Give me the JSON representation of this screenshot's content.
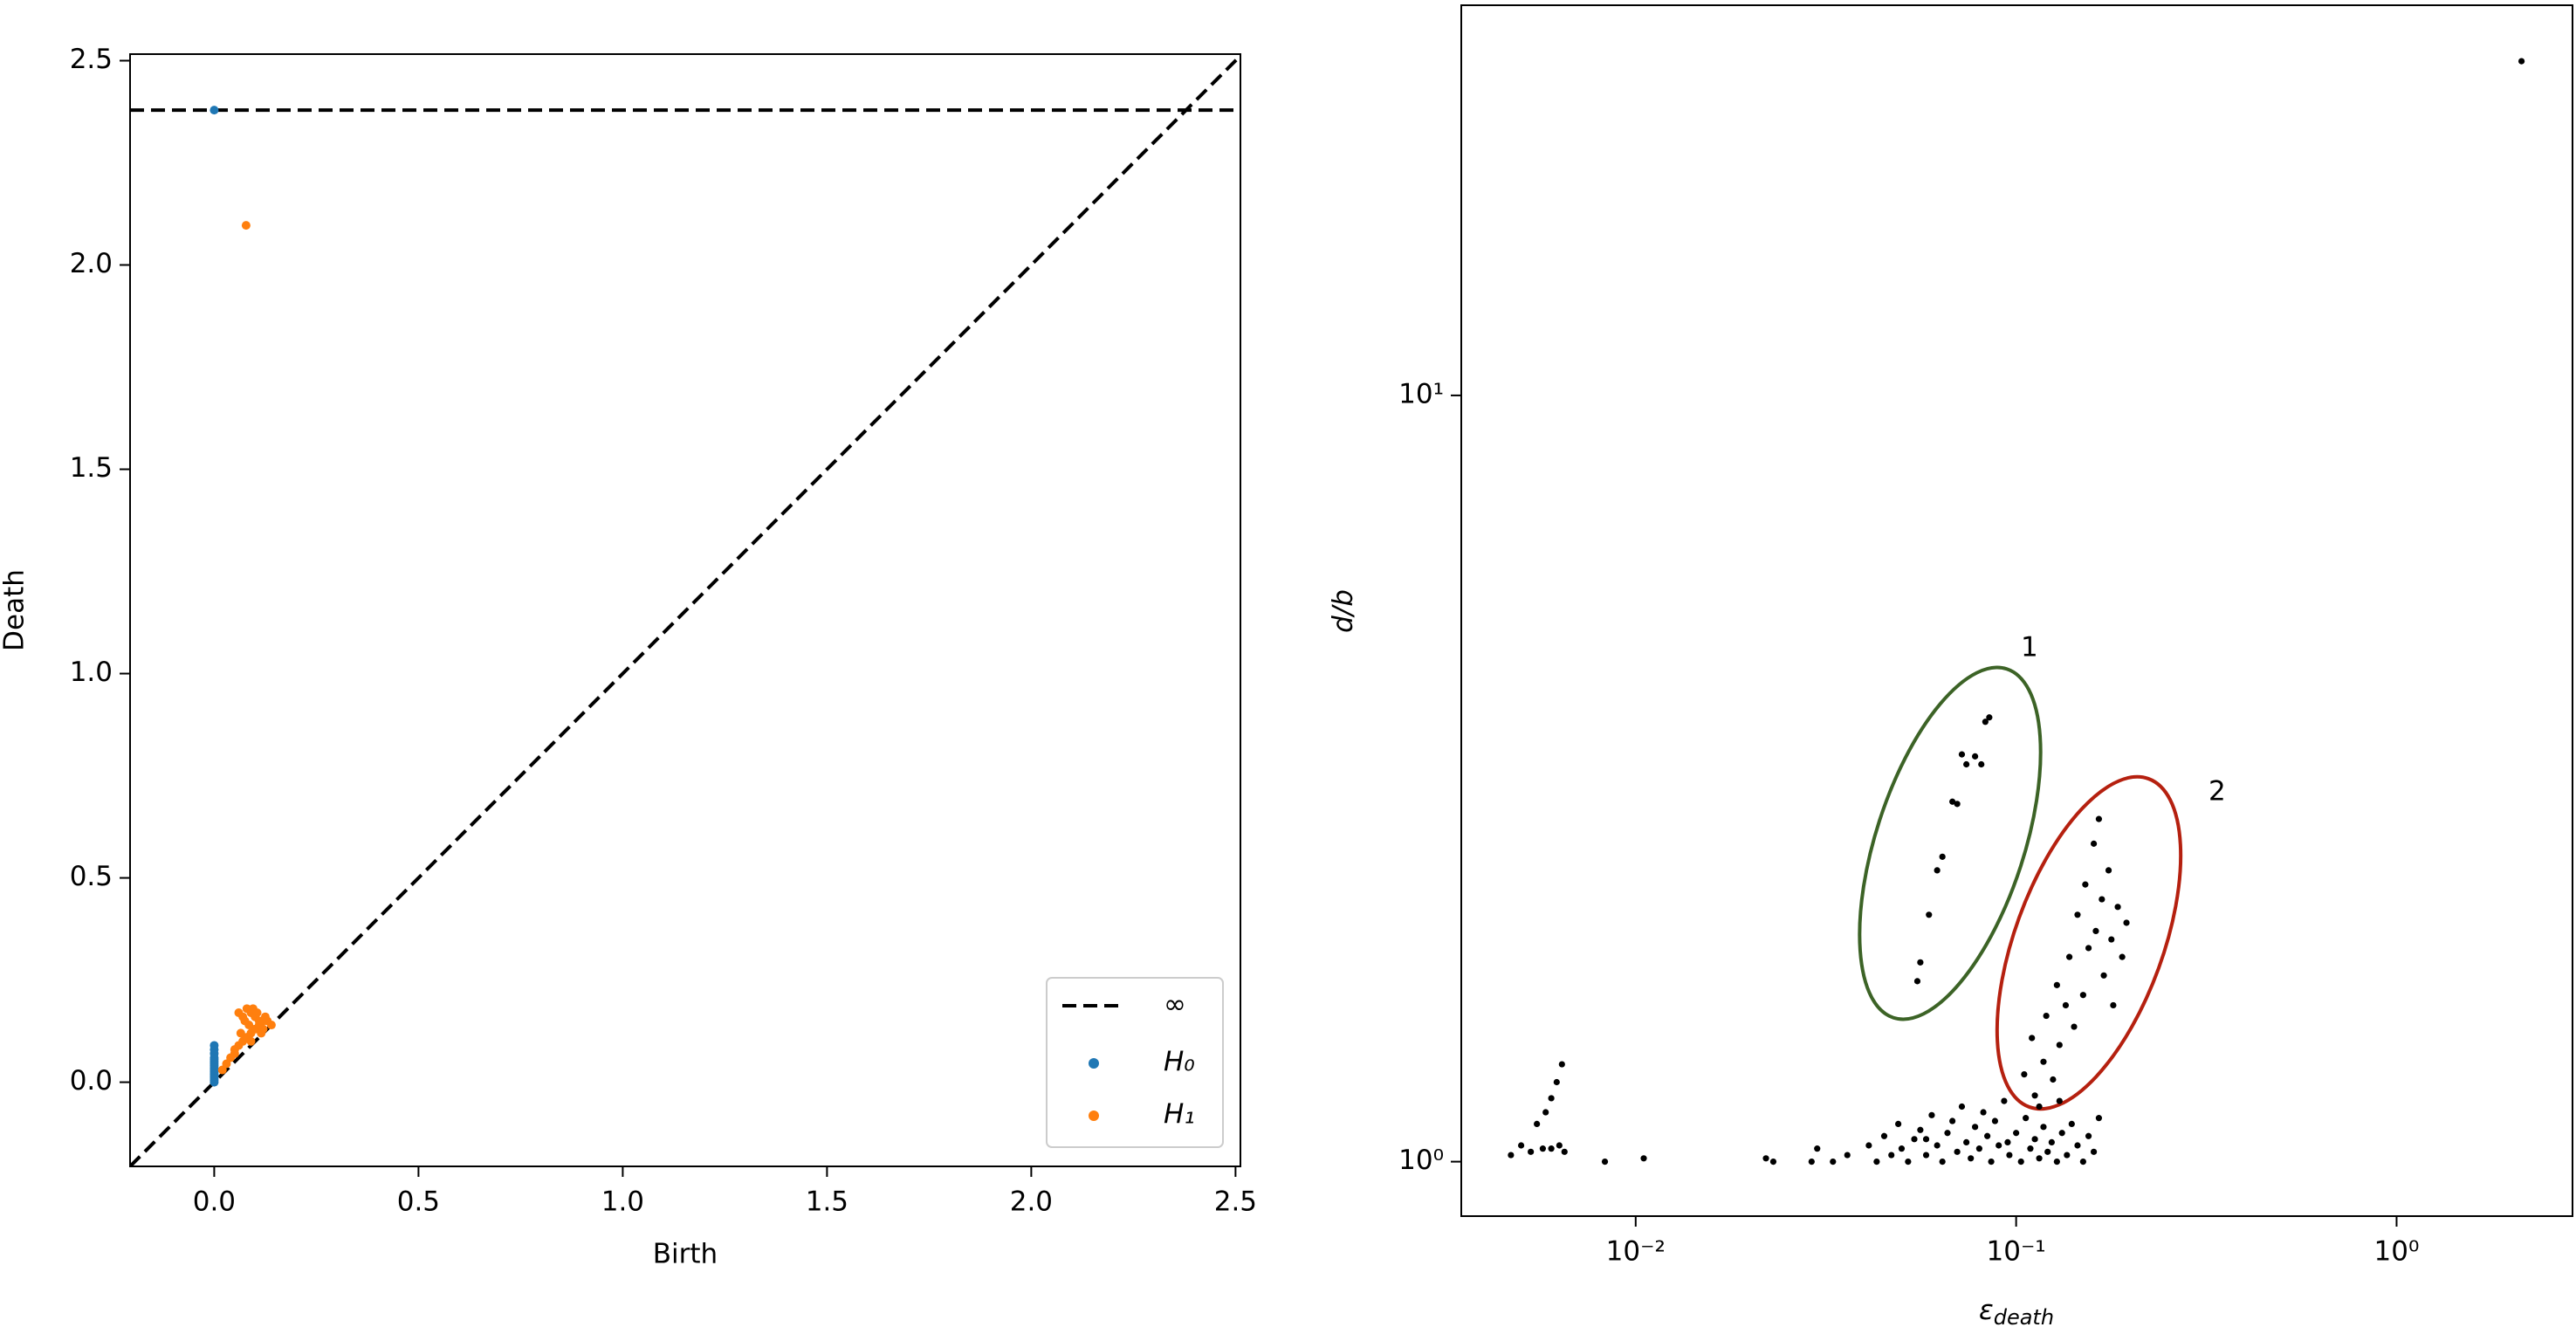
{
  "chart_data": [
    {
      "type": "scatter",
      "x_label": "Birth",
      "y_label": "Death",
      "xlim": [
        -0.206,
        2.512
      ],
      "ylim": [
        -0.206,
        2.516
      ],
      "xticks": [
        {
          "value": 0,
          "label": "0.0"
        },
        0.5,
        {
          "value": 1,
          "label": "1.0"
        },
        1.5,
        {
          "value": 2,
          "label": "2.0"
        },
        2.5
      ],
      "yticks": [
        {
          "value": 0,
          "label": "0.0"
        },
        0.5,
        {
          "value": 1,
          "label": "1.0"
        },
        1.5,
        {
          "value": 2,
          "label": "2.0"
        },
        2.5
      ],
      "infinity": {
        "name": "∞",
        "value": 2.379
      },
      "legend": "lower right",
      "series": [
        {
          "name": "H₀",
          "color": "#1f77b4",
          "x": [
            0,
            0,
            0,
            0,
            0,
            0,
            0,
            0,
            0,
            0,
            0,
            0,
            0,
            0,
            0,
            0,
            0
          ],
          "values": [
            0.0,
            0.005,
            0.01,
            0.015,
            0.02,
            0.025,
            0.03,
            0.035,
            0.04,
            0.045,
            0.05,
            0.055,
            0.06,
            0.07,
            0.08,
            0.09,
            2.379
          ]
        },
        {
          "name": "H₁",
          "color": "#ff7f0e",
          "x": [
            0.078,
            0.02,
            0.03,
            0.04,
            0.05,
            0.06,
            0.07,
            0.08,
            0.09,
            0.1,
            0.11,
            0.12,
            0.13,
            0.14,
            0.06,
            0.07,
            0.08,
            0.09,
            0.1,
            0.11,
            0.12,
            0.05,
            0.065,
            0.085,
            0.095,
            0.105,
            0.115,
            0.125,
            0.075,
            0.09
          ],
          "values": [
            2.097,
            0.03,
            0.045,
            0.06,
            0.07,
            0.09,
            0.1,
            0.11,
            0.12,
            0.13,
            0.14,
            0.15,
            0.15,
            0.14,
            0.17,
            0.16,
            0.18,
            0.17,
            0.16,
            0.15,
            0.13,
            0.08,
            0.12,
            0.14,
            0.18,
            0.17,
            0.12,
            0.16,
            0.15,
            0.1
          ]
        }
      ]
    },
    {
      "type": "scatter",
      "x_label": "ε",
      "x_label_sub": "death",
      "y_label": "d/b",
      "log_x": true,
      "log_y": true,
      "xlim": [
        0.00348,
        2.9
      ],
      "ylim": [
        0.849,
        32.3
      ],
      "xticks": [
        {
          "value": 0.01,
          "label": "10⁻²"
        },
        {
          "value": 0.1,
          "label": "10⁻¹"
        },
        {
          "value": 1,
          "label": "10⁰"
        }
      ],
      "yticks": [
        {
          "value": 1,
          "label": "10⁰"
        },
        {
          "value": 10,
          "label": "10¹"
        }
      ],
      "annotations": [
        {
          "text": "1",
          "color": "#3c6326"
        },
        {
          "text": "2",
          "color": "#b5200f"
        }
      ],
      "series": [
        {
          "color": "#000000",
          "x": [
            0.0047,
            0.005,
            0.0053,
            0.0055,
            0.0057,
            0.0058,
            0.006,
            0.0062,
            0.0064,
            0.006,
            0.0063,
            0.0065,
            0.0083,
            0.0105,
            0.022,
            0.023,
            0.029,
            0.03,
            0.033,
            0.036,
            0.041,
            0.043,
            0.045,
            0.047,
            0.049,
            0.05,
            0.052,
            0.054,
            0.056,
            0.058,
            0.06,
            0.062,
            0.064,
            0.066,
            0.068,
            0.07,
            0.072,
            0.074,
            0.076,
            0.078,
            0.08,
            0.082,
            0.084,
            0.086,
            0.088,
            0.09,
            0.093,
            0.096,
            0.1,
            0.103,
            0.106,
            0.109,
            0.112,
            0.115,
            0.118,
            0.121,
            0.124,
            0.128,
            0.132,
            0.136,
            0.14,
            0.145,
            0.15,
            0.155,
            0.16,
            0.165,
            0.095,
            0.058,
            0.055,
            0.056,
            0.059,
            0.062,
            0.064,
            0.068,
            0.07,
            0.072,
            0.074,
            0.078,
            0.081,
            0.083,
            0.085,
            0.105,
            0.11,
            0.112,
            0.118,
            0.12,
            0.125,
            0.128,
            0.13,
            0.135,
            0.138,
            0.142,
            0.145,
            0.15,
            0.152,
            0.155,
            0.16,
            0.162,
            0.165,
            0.168,
            0.17,
            0.175,
            0.178,
            0.18,
            0.185,
            0.19,
            0.195,
            0.115,
            0.13,
            2.13
          ],
          "values": [
            1.02,
            1.05,
            1.03,
            1.12,
            1.04,
            1.16,
            1.21,
            1.27,
            1.34,
            1.04,
            1.05,
            1.03,
            1.0,
            1.01,
            1.01,
            1.0,
            1.0,
            1.04,
            1.0,
            1.02,
            1.05,
            1.0,
            1.08,
            1.02,
            1.12,
            1.04,
            1.0,
            1.07,
            1.1,
            1.02,
            1.15,
            1.05,
            1.0,
            1.09,
            1.13,
            1.03,
            1.18,
            1.06,
            1.01,
            1.11,
            1.04,
            1.16,
            1.08,
            1.0,
            1.13,
            1.05,
            1.2,
            1.02,
            1.09,
            1.0,
            1.14,
            1.04,
            1.07,
            1.01,
            1.11,
            1.03,
            1.06,
            1.0,
            1.09,
            1.02,
            1.12,
            1.05,
            1.0,
            1.08,
            1.03,
            1.14,
            1.06,
            1.07,
            1.72,
            1.82,
            2.1,
            2.4,
            2.5,
            2.95,
            2.93,
            3.4,
            3.3,
            3.38,
            3.3,
            3.75,
            3.8,
            1.3,
            1.45,
            1.22,
            1.35,
            1.55,
            1.28,
            1.7,
            1.42,
            1.6,
            1.85,
            1.5,
            2.1,
            1.65,
            2.3,
            1.9,
            2.6,
            2.0,
            2.8,
            2.2,
            1.75,
            2.4,
            1.95,
            1.6,
            2.15,
            1.85,
            2.05,
            1.18,
            1.2,
            27.3
          ]
        }
      ]
    }
  ]
}
